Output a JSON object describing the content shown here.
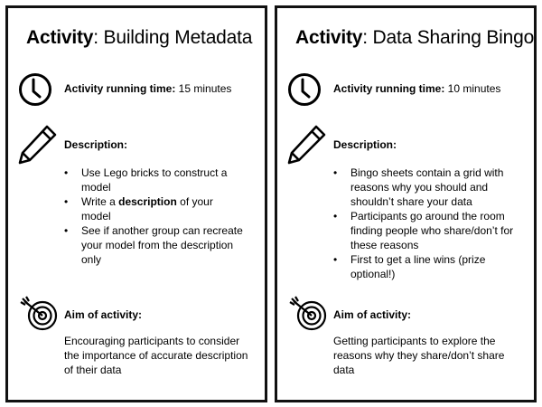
{
  "cards": [
    {
      "title_bold": "Activity",
      "title_rest": ": Building Metadata",
      "time_label": "Activity running time:",
      "time_value": " 15 minutes",
      "description_heading": "Description:",
      "bullets": [
        {
          "before": "Use Lego bricks to construct a model",
          "bold": "",
          "after": ""
        },
        {
          "before": "Write a ",
          "bold": "description",
          "after": " of your model"
        },
        {
          "before": "See if another group can recreate your model from the description only",
          "bold": "",
          "after": ""
        }
      ],
      "aim_heading": "Aim of activity:",
      "aim_text": "Encouraging participants to consider the importance of accurate description of their data"
    },
    {
      "title_bold": "Activity",
      "title_rest": ": Data Sharing Bingo",
      "time_label": "Activity running time:",
      "time_value": " 10 minutes",
      "description_heading": "Description:",
      "bullets": [
        {
          "before": "Bingo sheets contain a grid with reasons why you should and shouldn’t share your data",
          "bold": "",
          "after": ""
        },
        {
          "before": "Participants go around the room finding people who share/don’t for these reasons",
          "bold": "",
          "after": ""
        },
        {
          "before": "First to get a line wins (prize optional!)",
          "bold": "",
          "after": ""
        }
      ],
      "aim_heading": "Aim of activity:",
      "aim_text": "Getting participants to explore the reasons why they share/don’t share data"
    }
  ],
  "icons": [
    "clock-icon",
    "pencil-icon",
    "target-icon"
  ]
}
